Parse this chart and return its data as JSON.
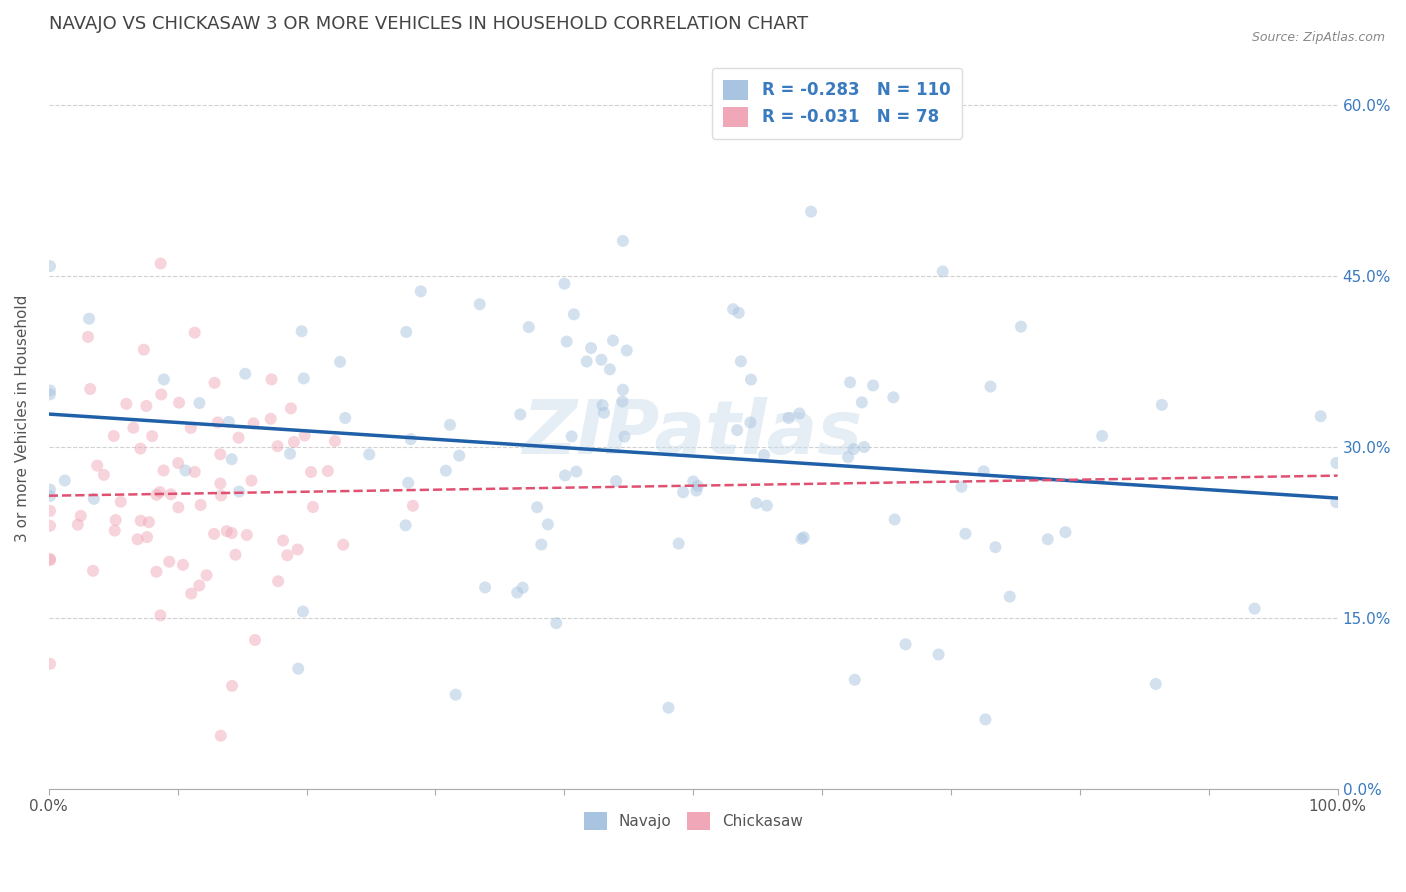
{
  "title": "NAVAJO VS CHICKASAW 3 OR MORE VEHICLES IN HOUSEHOLD CORRELATION CHART",
  "source": "Source: ZipAtlas.com",
  "ylabel": "3 or more Vehicles in Household",
  "watermark": "ZIPatlas",
  "navajo_R": -0.283,
  "navajo_N": 110,
  "chickasaw_R": -0.031,
  "chickasaw_N": 78,
  "navajo_color": "#a8c4e0",
  "navajo_line_color": "#2060a8",
  "chickasaw_color": "#f0a8b8",
  "chickasaw_line_color": "#e05070",
  "background_color": "#ffffff",
  "grid_color": "#cccccc",
  "title_color": "#444444",
  "axis_label_color": "#3a7abf",
  "xlim": [
    0.0,
    1.0
  ],
  "ylim": [
    0.0,
    0.65
  ],
  "x_ticks": [
    0.0,
    0.1,
    0.2,
    0.3,
    0.4,
    0.5,
    0.6,
    0.7,
    0.8,
    0.9,
    1.0
  ],
  "y_ticks": [
    0.0,
    0.15,
    0.3,
    0.45,
    0.6
  ],
  "y_tick_labels": [
    "0.0%",
    "15.0%",
    "30.0%",
    "45.0%",
    "60.0%"
  ],
  "marker_size": 75,
  "marker_alpha": 0.5,
  "figsize": [
    14.06,
    8.92
  ],
  "dpi": 100,
  "nav_seed": 12,
  "chk_seed": 99
}
